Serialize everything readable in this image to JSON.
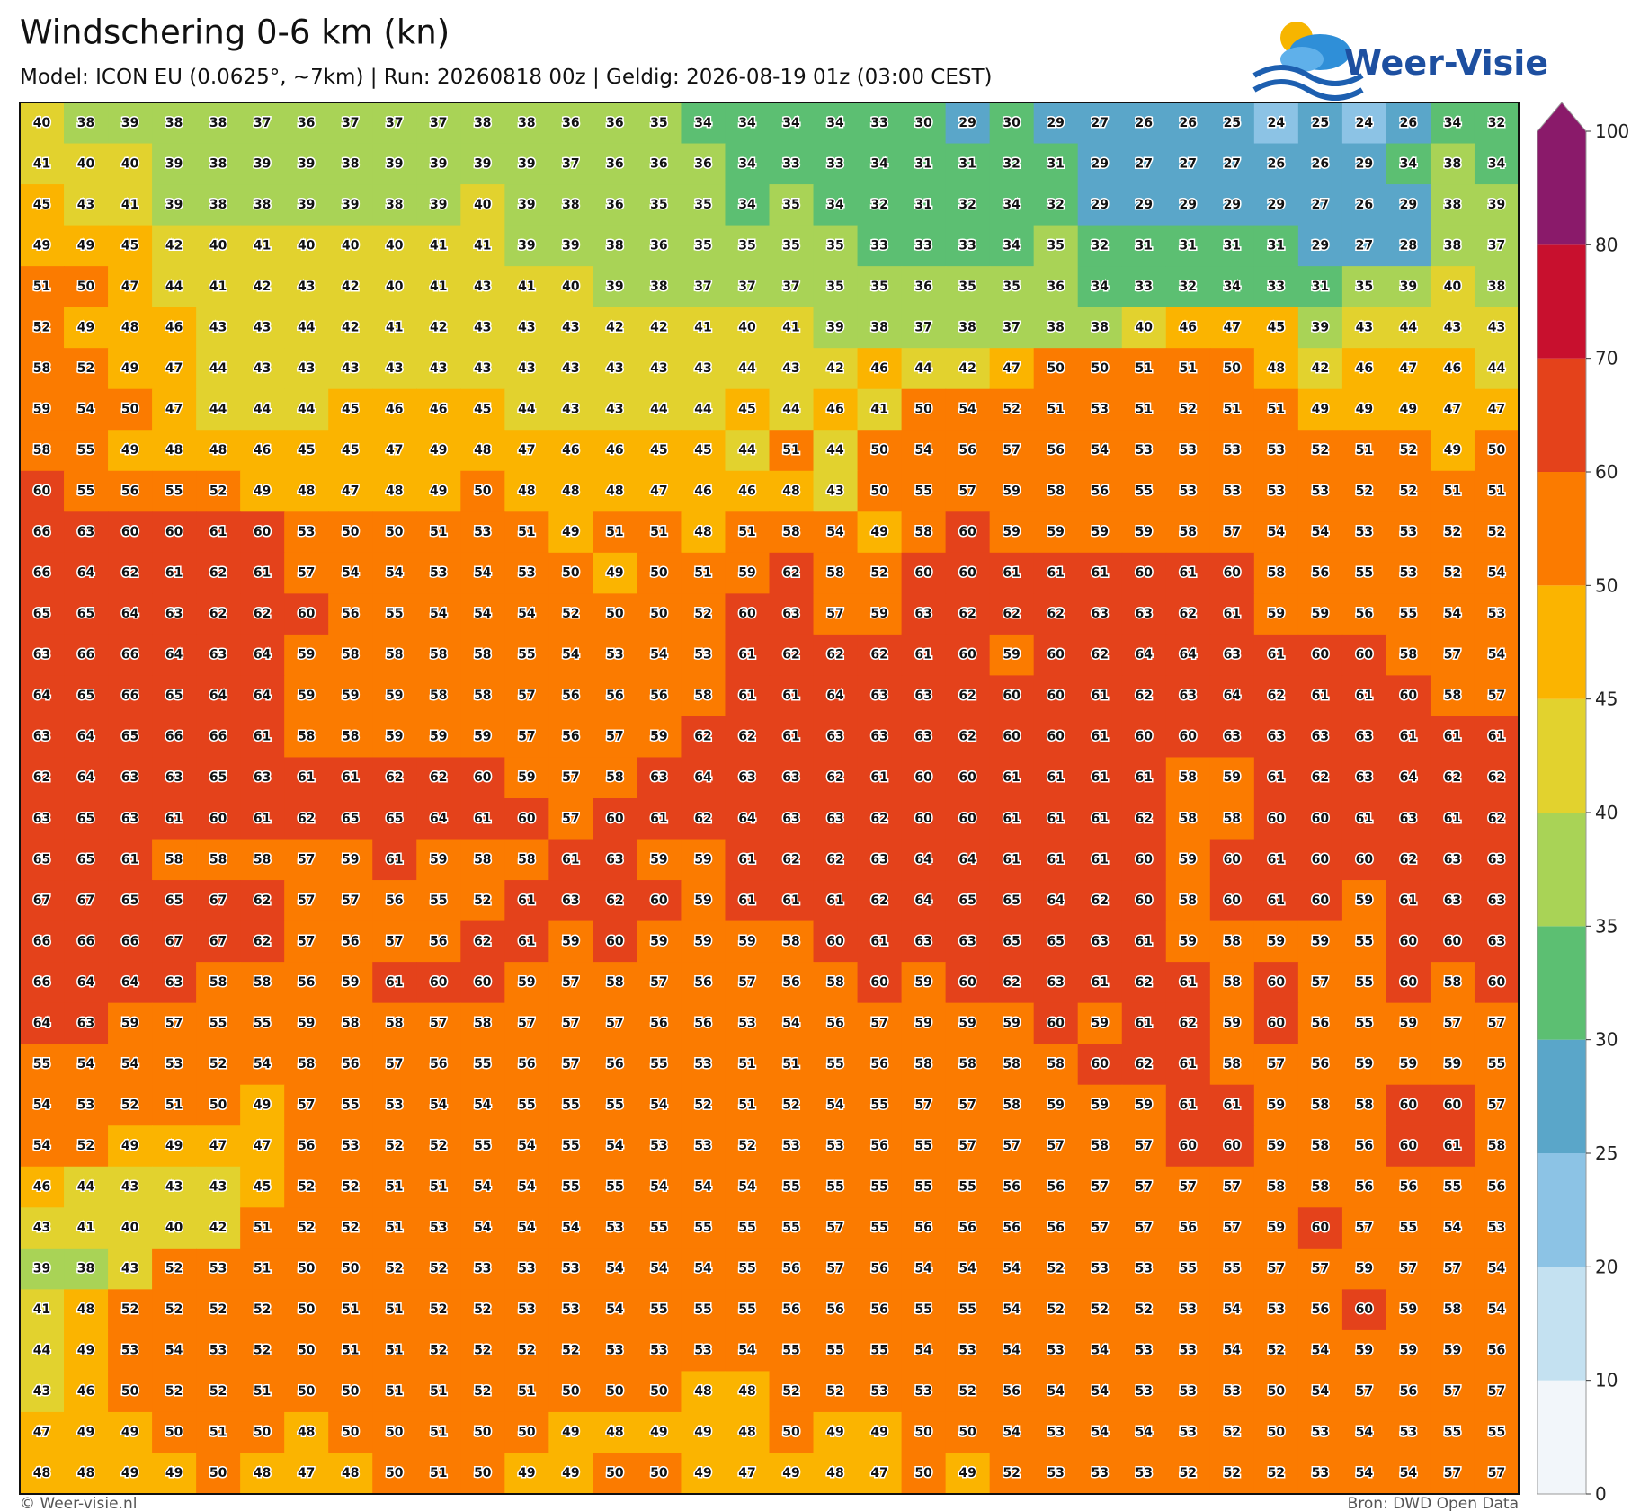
{
  "header": {
    "title": "Windschering 0-6 km (kn)",
    "subtitle": "Model: ICON EU (0.0625°, ~7km)  |  Run: 20260818 00z  |  Geldig: 2026-08-19 01z (03:00 CEST)",
    "logo": "Weer-Visie"
  },
  "grid": {
    "values": [
      [
        40,
        38,
        39,
        38,
        38,
        37,
        36,
        37,
        37,
        37,
        38,
        38,
        36,
        36,
        35,
        34,
        34,
        34,
        34,
        33,
        30,
        29,
        30,
        29,
        27,
        26,
        26,
        25,
        24,
        25,
        24,
        26,
        34,
        32
      ],
      [
        41,
        40,
        40,
        39,
        38,
        39,
        39,
        38,
        39,
        39,
        39,
        39,
        37,
        36,
        36,
        36,
        34,
        33,
        33,
        34,
        31,
        31,
        32,
        31,
        29,
        27,
        27,
        27,
        26,
        26,
        29,
        34,
        38,
        34
      ],
      [
        45,
        43,
        41,
        39,
        38,
        38,
        39,
        39,
        38,
        39,
        40,
        39,
        38,
        36,
        35,
        35,
        34,
        35,
        34,
        32,
        31,
        32,
        34,
        32,
        29,
        29,
        29,
        29,
        29,
        27,
        26,
        29,
        38,
        39
      ],
      [
        49,
        49,
        45,
        42,
        40,
        41,
        40,
        40,
        40,
        41,
        41,
        39,
        39,
        38,
        36,
        35,
        35,
        35,
        35,
        33,
        33,
        33,
        34,
        35,
        32,
        31,
        31,
        31,
        31,
        29,
        27,
        28,
        38,
        37
      ],
      [
        51,
        50,
        47,
        44,
        41,
        42,
        43,
        42,
        40,
        41,
        43,
        41,
        40,
        39,
        38,
        37,
        37,
        37,
        35,
        35,
        36,
        35,
        35,
        36,
        34,
        33,
        32,
        34,
        33,
        31,
        35,
        39,
        40,
        38
      ],
      [
        52,
        49,
        48,
        46,
        43,
        43,
        44,
        42,
        41,
        42,
        43,
        43,
        43,
        42,
        42,
        41,
        40,
        41,
        39,
        38,
        37,
        38,
        37,
        38,
        38,
        40,
        46,
        47,
        45,
        39,
        43,
        44,
        43,
        43
      ],
      [
        58,
        52,
        49,
        47,
        44,
        43,
        43,
        43,
        43,
        43,
        43,
        43,
        43,
        43,
        43,
        43,
        44,
        43,
        42,
        46,
        44,
        42,
        47,
        50,
        50,
        51,
        51,
        50,
        48,
        42,
        46,
        47,
        46,
        44
      ],
      [
        59,
        54,
        50,
        47,
        44,
        44,
        44,
        45,
        46,
        46,
        45,
        44,
        43,
        43,
        44,
        44,
        45,
        44,
        46,
        41,
        50,
        54,
        52,
        51,
        53,
        51,
        52,
        51,
        51,
        49,
        49,
        49,
        47,
        47
      ],
      [
        58,
        55,
        49,
        48,
        48,
        46,
        45,
        45,
        47,
        49,
        48,
        47,
        46,
        46,
        45,
        45,
        44,
        51,
        44,
        50,
        54,
        56,
        57,
        56,
        54,
        53,
        53,
        53,
        53,
        52,
        51,
        52,
        49,
        50
      ],
      [
        60,
        55,
        56,
        55,
        52,
        49,
        48,
        47,
        48,
        49,
        50,
        48,
        48,
        48,
        47,
        46,
        46,
        48,
        43,
        50,
        55,
        57,
        59,
        58,
        56,
        55,
        53,
        53,
        53,
        53,
        52,
        52,
        51,
        51
      ],
      [
        66,
        63,
        60,
        60,
        61,
        60,
        53,
        50,
        50,
        51,
        53,
        51,
        49,
        51,
        51,
        48,
        51,
        58,
        54,
        49,
        58,
        60,
        59,
        59,
        59,
        59,
        58,
        57,
        54,
        54,
        53,
        53,
        52,
        52
      ],
      [
        66,
        64,
        62,
        61,
        62,
        61,
        57,
        54,
        54,
        53,
        54,
        53,
        50,
        49,
        50,
        51,
        59,
        62,
        58,
        52,
        60,
        60,
        61,
        61,
        61,
        60,
        61,
        60,
        58,
        56,
        55,
        53,
        52,
        54
      ],
      [
        65,
        65,
        64,
        63,
        62,
        62,
        60,
        56,
        55,
        54,
        54,
        54,
        52,
        50,
        50,
        52,
        60,
        63,
        57,
        59,
        63,
        62,
        62,
        62,
        63,
        63,
        62,
        61,
        59,
        59,
        56,
        55,
        54,
        53
      ],
      [
        63,
        66,
        66,
        64,
        63,
        64,
        59,
        58,
        58,
        58,
        58,
        55,
        54,
        53,
        54,
        53,
        61,
        62,
        62,
        62,
        61,
        60,
        59,
        60,
        62,
        64,
        64,
        63,
        61,
        60,
        60,
        58,
        57,
        54
      ],
      [
        64,
        65,
        66,
        65,
        64,
        64,
        59,
        59,
        59,
        58,
        58,
        57,
        56,
        56,
        56,
        58,
        61,
        61,
        64,
        63,
        63,
        62,
        60,
        60,
        61,
        62,
        63,
        64,
        62,
        61,
        61,
        60,
        58,
        57
      ],
      [
        63,
        64,
        65,
        66,
        66,
        61,
        58,
        58,
        59,
        59,
        59,
        57,
        56,
        57,
        59,
        62,
        62,
        61,
        63,
        63,
        63,
        62,
        60,
        60,
        61,
        60,
        60,
        63,
        63,
        63,
        63,
        61,
        61,
        61
      ],
      [
        62,
        64,
        63,
        63,
        65,
        63,
        61,
        61,
        62,
        62,
        60,
        59,
        57,
        58,
        63,
        64,
        63,
        63,
        62,
        61,
        60,
        60,
        61,
        61,
        61,
        61,
        58,
        59,
        61,
        62,
        63,
        64,
        62,
        62
      ],
      [
        63,
        65,
        63,
        61,
        60,
        61,
        62,
        65,
        65,
        64,
        61,
        60,
        57,
        60,
        61,
        62,
        64,
        63,
        63,
        62,
        60,
        60,
        61,
        61,
        61,
        62,
        58,
        58,
        60,
        60,
        61,
        63,
        61,
        62
      ],
      [
        65,
        65,
        61,
        58,
        58,
        58,
        57,
        59,
        61,
        59,
        58,
        58,
        61,
        63,
        59,
        59,
        61,
        62,
        62,
        63,
        64,
        64,
        61,
        61,
        61,
        60,
        59,
        60,
        61,
        60,
        60,
        62,
        63,
        63
      ],
      [
        67,
        67,
        65,
        65,
        67,
        62,
        57,
        57,
        56,
        55,
        52,
        61,
        63,
        62,
        60,
        59,
        61,
        61,
        61,
        62,
        64,
        65,
        65,
        64,
        62,
        60,
        58,
        60,
        61,
        60,
        59,
        61,
        63,
        63
      ],
      [
        66,
        66,
        66,
        67,
        67,
        62,
        57,
        56,
        57,
        56,
        62,
        61,
        59,
        60,
        59,
        59,
        59,
        58,
        60,
        61,
        63,
        63,
        65,
        65,
        63,
        61,
        59,
        58,
        59,
        59,
        55,
        60,
        60,
        63
      ],
      [
        66,
        64,
        64,
        63,
        58,
        58,
        56,
        59,
        61,
        60,
        60,
        59,
        57,
        58,
        57,
        56,
        57,
        56,
        58,
        60,
        59,
        60,
        62,
        63,
        61,
        62,
        61,
        58,
        60,
        57,
        55,
        60,
        58,
        60
      ],
      [
        64,
        63,
        59,
        57,
        55,
        55,
        59,
        58,
        58,
        57,
        58,
        57,
        57,
        57,
        56,
        56,
        53,
        54,
        56,
        57,
        59,
        59,
        59,
        60,
        59,
        61,
        62,
        59,
        60,
        56,
        55,
        59,
        57,
        57
      ],
      [
        55,
        54,
        54,
        53,
        52,
        54,
        58,
        56,
        57,
        56,
        55,
        56,
        57,
        56,
        55,
        53,
        51,
        51,
        55,
        56,
        58,
        58,
        58,
        58,
        60,
        62,
        61,
        58,
        57,
        56,
        59,
        59,
        59,
        55
      ],
      [
        54,
        53,
        52,
        51,
        50,
        49,
        57,
        55,
        53,
        54,
        54,
        55,
        55,
        55,
        54,
        52,
        51,
        52,
        54,
        55,
        57,
        57,
        58,
        59,
        59,
        59,
        61,
        61,
        59,
        58,
        58,
        60,
        60,
        57
      ],
      [
        54,
        52,
        49,
        49,
        47,
        47,
        56,
        53,
        52,
        52,
        55,
        54,
        55,
        54,
        53,
        53,
        52,
        53,
        53,
        56,
        55,
        57,
        57,
        57,
        58,
        57,
        60,
        60,
        59,
        58,
        56,
        60,
        61,
        58
      ],
      [
        46,
        44,
        43,
        43,
        43,
        45,
        52,
        52,
        51,
        51,
        54,
        54,
        55,
        55,
        54,
        54,
        54,
        55,
        55,
        55,
        55,
        55,
        56,
        56,
        57,
        57,
        57,
        57,
        58,
        58,
        56,
        56,
        55,
        56
      ],
      [
        43,
        41,
        40,
        40,
        42,
        51,
        52,
        52,
        51,
        53,
        54,
        54,
        54,
        53,
        55,
        55,
        55,
        55,
        57,
        55,
        56,
        56,
        56,
        56,
        57,
        57,
        56,
        57,
        59,
        60,
        57,
        55,
        54,
        53
      ],
      [
        39,
        38,
        43,
        52,
        53,
        51,
        50,
        50,
        52,
        52,
        53,
        53,
        53,
        54,
        54,
        54,
        55,
        56,
        57,
        56,
        54,
        54,
        54,
        52,
        53,
        53,
        55,
        55,
        57,
        57,
        59,
        57,
        57,
        54
      ],
      [
        41,
        48,
        52,
        52,
        52,
        52,
        50,
        51,
        51,
        52,
        52,
        53,
        53,
        54,
        55,
        55,
        55,
        56,
        56,
        56,
        55,
        55,
        54,
        52,
        52,
        52,
        53,
        54,
        53,
        56,
        60,
        59,
        58,
        54
      ],
      [
        44,
        49,
        53,
        54,
        53,
        52,
        50,
        51,
        51,
        52,
        52,
        52,
        52,
        53,
        53,
        53,
        54,
        55,
        55,
        55,
        54,
        53,
        54,
        53,
        54,
        53,
        53,
        54,
        52,
        54,
        59,
        59,
        59,
        56
      ],
      [
        43,
        46,
        50,
        52,
        52,
        51,
        50,
        50,
        51,
        51,
        52,
        51,
        50,
        50,
        50,
        48,
        48,
        52,
        52,
        53,
        53,
        52,
        56,
        54,
        54,
        53,
        53,
        53,
        50,
        54,
        57,
        56,
        57,
        57
      ],
      [
        47,
        49,
        49,
        50,
        51,
        50,
        48,
        50,
        50,
        51,
        50,
        50,
        49,
        48,
        49,
        49,
        48,
        50,
        49,
        49,
        50,
        50,
        54,
        53,
        54,
        54,
        53,
        52,
        50,
        53,
        54,
        53,
        55,
        55
      ],
      [
        48,
        48,
        49,
        49,
        50,
        48,
        47,
        48,
        50,
        51,
        50,
        49,
        49,
        50,
        50,
        49,
        47,
        49,
        48,
        47,
        50,
        49,
        52,
        53,
        53,
        53,
        52,
        52,
        52,
        53,
        54,
        54,
        57,
        57
      ]
    ]
  },
  "colorbar": {
    "bounds": [
      0,
      10,
      20,
      25,
      30,
      35,
      40,
      45,
      50,
      60,
      70,
      80,
      100
    ],
    "colors": [
      "#f2f6fa",
      "#c4e1f1",
      "#8cc3e5",
      "#5aa6c9",
      "#5cbf72",
      "#a9d356",
      "#e2d22e",
      "#fbb400",
      "#fb7b00",
      "#e4421b",
      "#c8102e",
      "#8a1a6a"
    ]
  },
  "footer": {
    "left": "© Weer-visie.nl",
    "right": "Bron: DWD Open Data"
  }
}
